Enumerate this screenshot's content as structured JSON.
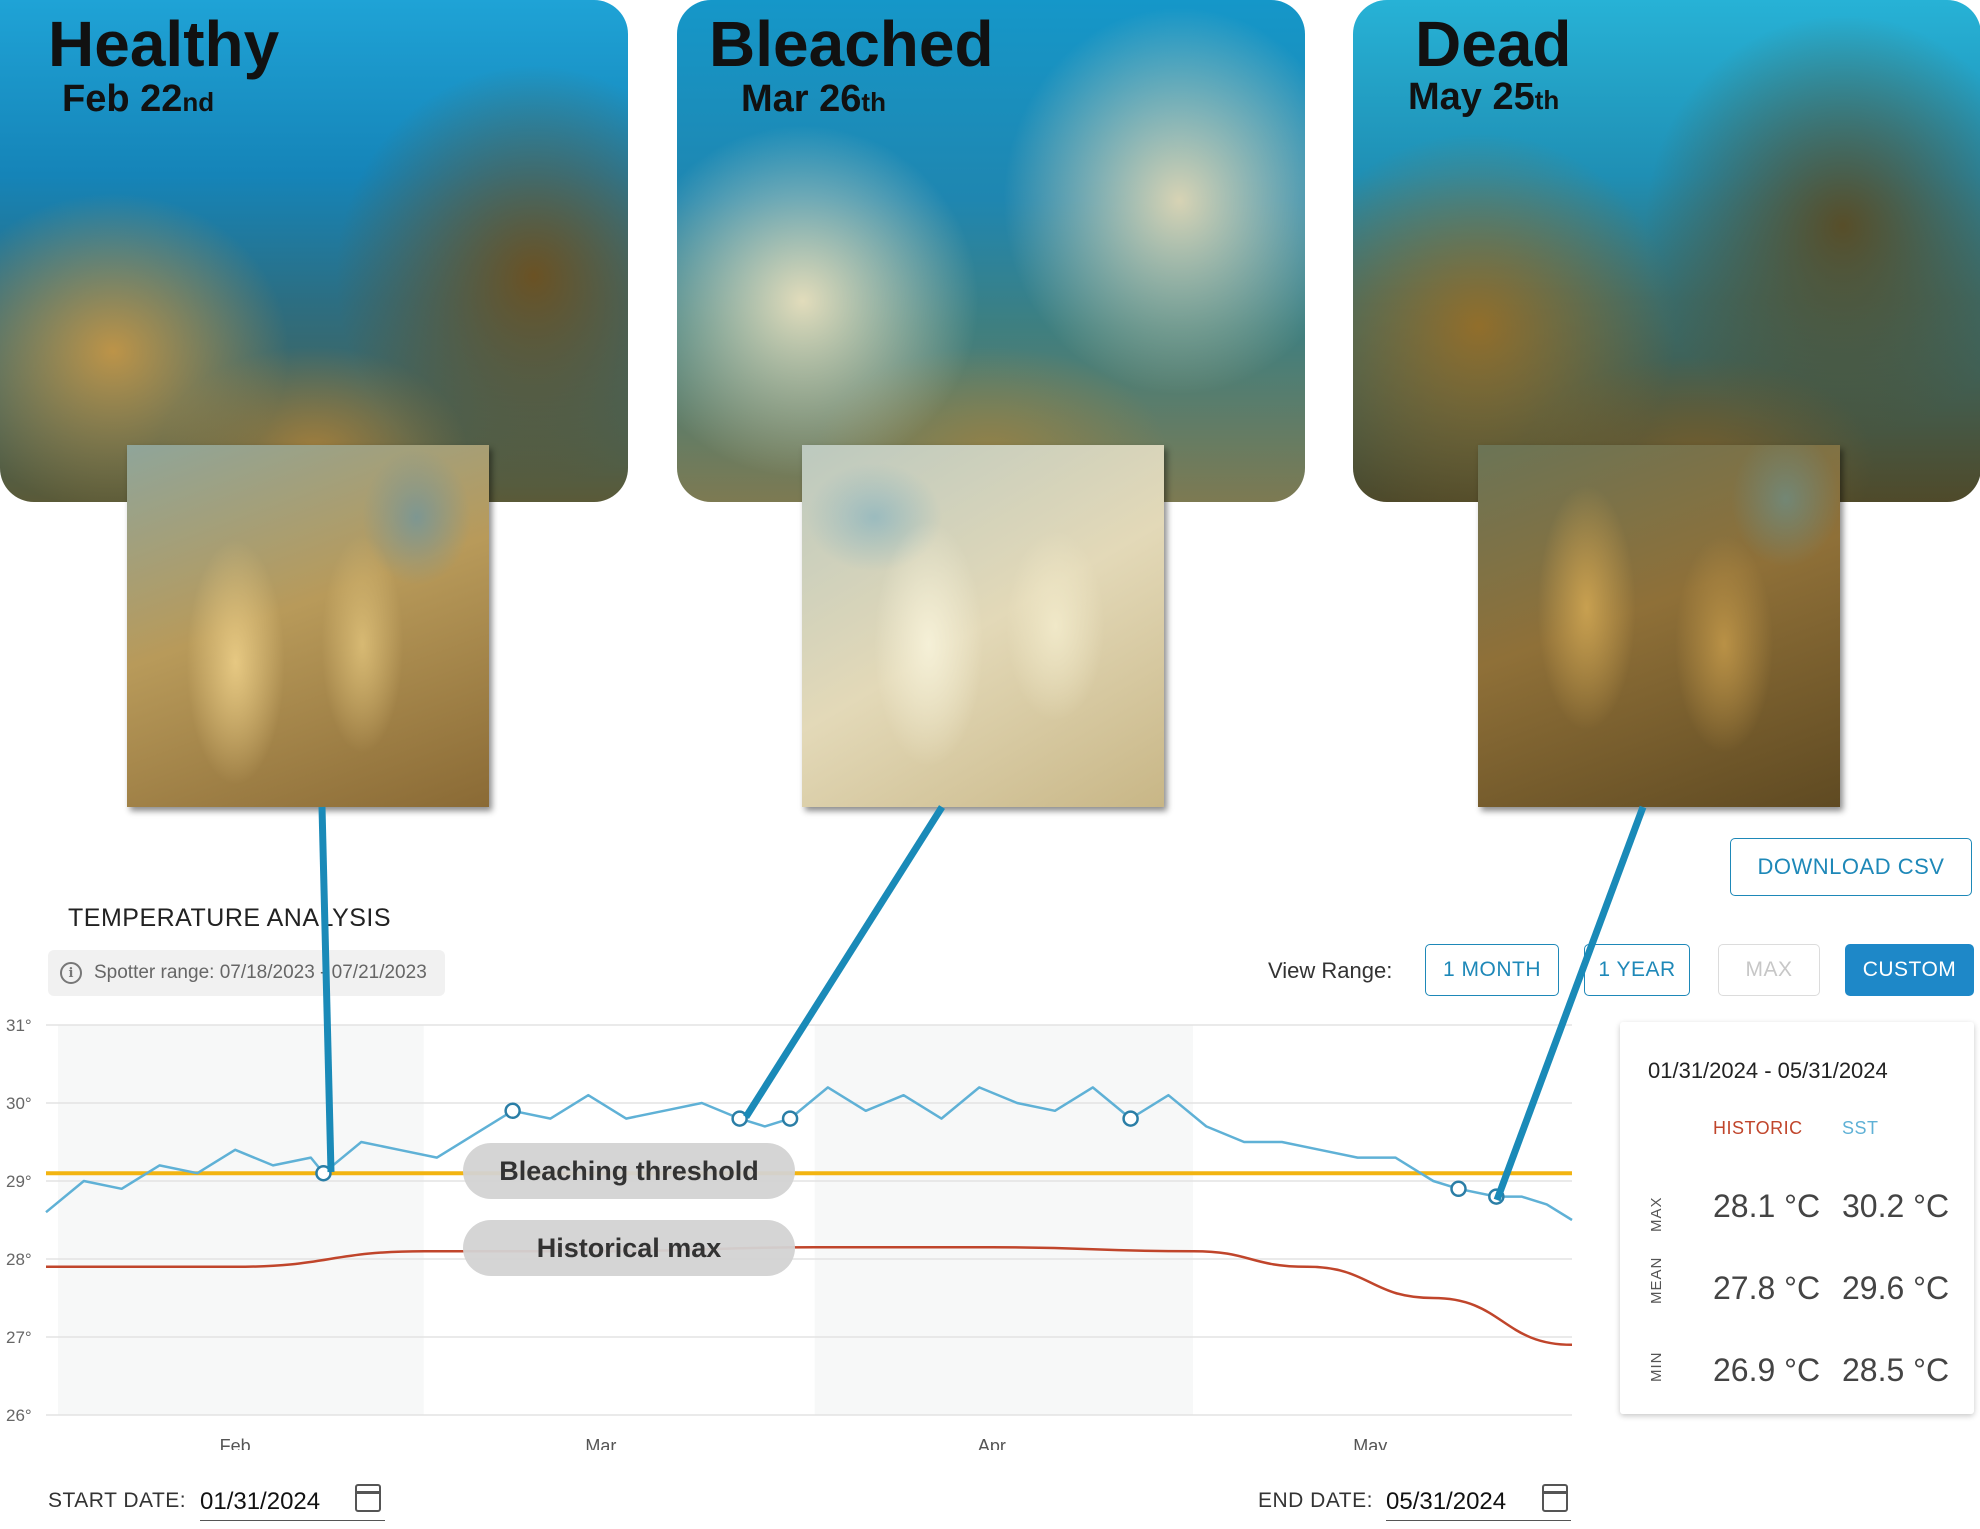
{
  "photos": [
    {
      "title": "Healthy",
      "date_main": "Feb 22",
      "date_suffix": "nd"
    },
    {
      "title": "Bleached",
      "date_main": "Mar 26",
      "date_suffix": "th"
    },
    {
      "title": "Dead",
      "date_main": "May 25",
      "date_suffix": "th"
    }
  ],
  "panel": {
    "title": "TEMPERATURE ANALYSIS",
    "spotter_range": "Spotter range: 07/18/2023 - 07/21/2023",
    "download_label": "DOWNLOAD CSV",
    "view_range_label": "View Range:",
    "range_buttons": [
      "1 MONTH",
      "1 YEAR",
      "MAX",
      "CUSTOM"
    ],
    "active_range": "CUSTOM"
  },
  "annotations": {
    "bleaching": "Bleaching threshold",
    "historical": "Historical max"
  },
  "stats": {
    "range": "01/31/2024 - 05/31/2024",
    "col_historic": "HISTORIC",
    "col_sst": "SST",
    "rows": [
      {
        "label": "MAX",
        "historic": "28.1 °C",
        "sst": "30.2 °C"
      },
      {
        "label": "MEAN",
        "historic": "27.8 °C",
        "sst": "29.6 °C"
      },
      {
        "label": "MIN",
        "historic": "26.9 °C",
        "sst": "28.5 °C"
      }
    ]
  },
  "dates": {
    "start_label": "START DATE:",
    "start_value": "01/31/2024",
    "end_label": "END DATE:",
    "end_value": "05/31/2024"
  },
  "colors": {
    "sst": "#5fb1d6",
    "historic": "#c0452b",
    "threshold": "#f2b411",
    "accent": "#1e88b8",
    "connector": "#1a8ab8"
  },
  "chart_data": {
    "type": "line",
    "ylim": [
      26,
      31
    ],
    "yticks": [
      "26°",
      "27°",
      "28°",
      "29°",
      "30°",
      "31°"
    ],
    "months": [
      "Feb",
      "Mar",
      "Apr",
      "May"
    ],
    "threshold": 29.1,
    "series": [
      {
        "name": "SST",
        "x": [
          "01/31",
          "02/03",
          "02/06",
          "02/09",
          "02/12",
          "02/15",
          "02/18",
          "02/21",
          "02/22",
          "02/25",
          "02/28",
          "03/02",
          "03/05",
          "03/08",
          "03/11",
          "03/14",
          "03/17",
          "03/20",
          "03/23",
          "03/26",
          "03/28",
          "03/30",
          "04/02",
          "04/05",
          "04/08",
          "04/11",
          "04/14",
          "04/17",
          "04/20",
          "04/23",
          "04/26",
          "04/29",
          "05/02",
          "05/05",
          "05/08",
          "05/11",
          "05/14",
          "05/17",
          "05/20",
          "05/22",
          "05/25",
          "05/27",
          "05/29",
          "05/31"
        ],
        "values": [
          28.6,
          29.0,
          28.9,
          29.2,
          29.1,
          29.4,
          29.2,
          29.3,
          29.1,
          29.5,
          29.4,
          29.3,
          29.6,
          29.9,
          29.8,
          30.1,
          29.8,
          29.9,
          30.0,
          29.8,
          29.7,
          29.8,
          30.2,
          29.9,
          30.1,
          29.8,
          30.2,
          30.0,
          29.9,
          30.2,
          29.8,
          30.1,
          29.7,
          29.5,
          29.5,
          29.4,
          29.3,
          29.3,
          29.0,
          28.9,
          28.8,
          28.8,
          28.7,
          28.5
        ]
      },
      {
        "name": "Historic",
        "x": [
          "01/31",
          "02/15",
          "03/01",
          "03/15",
          "04/01",
          "04/15",
          "05/01",
          "05/10",
          "05/20",
          "05/31"
        ],
        "values": [
          27.9,
          27.9,
          28.1,
          28.1,
          28.15,
          28.15,
          28.1,
          27.9,
          27.5,
          26.9
        ]
      }
    ],
    "markers": [
      "02/22",
      "03/08",
      "03/26",
      "03/30",
      "04/26",
      "05/22",
      "05/25"
    ]
  }
}
